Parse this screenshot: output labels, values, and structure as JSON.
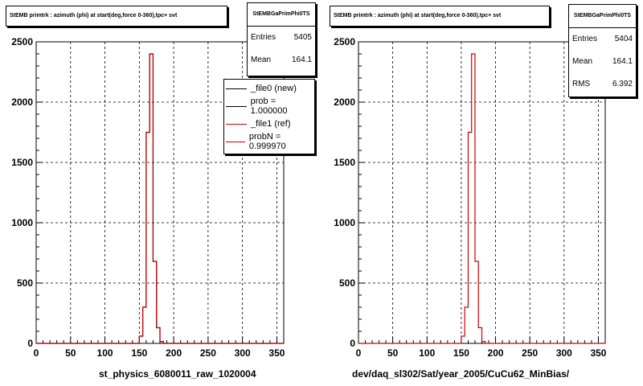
{
  "colors": {
    "new": "#000000",
    "ref": "#cc0000",
    "grid": "#000000"
  },
  "panels": [
    {
      "title": "StEMB primtrk : azimuth (phi) at start(deg,force 0-360),tpc+ svt",
      "xtitle": "st_physics_6080011_raw_1020004",
      "stats": {
        "name": "StEMBGaPrimPhi0TS",
        "entries_label": "Entries",
        "entries": "5405",
        "mean_label": "Mean",
        "mean": "164.1"
      },
      "legend": [
        {
          "label": "_file0 (new)",
          "color": "#000000"
        },
        {
          "label": "prob = 1.000000",
          "color": "#000000"
        },
        {
          "label": "_file1 (ref)",
          "color": "#cc0000"
        },
        {
          "label": "probN = 0.999970",
          "color": "#cc0000"
        }
      ]
    },
    {
      "title": "StEMB primtrk : azimuth (phi) at start(deg,force 0-360),tpc+ svt",
      "xtitle": "dev/daq_sl302/Sat/year_2005/CuCu62_MinBias/",
      "stats": {
        "name": "StEMBGaPrimPhi0TS",
        "entries_label": "Entries",
        "entries": "5404",
        "mean_label": "Mean",
        "mean": "164.1",
        "rms_label": "RMS",
        "rms": "6.392"
      }
    }
  ],
  "chart_data": [
    {
      "type": "histogram",
      "title": "StEMB primtrk : azimuth (phi) at start(deg,force 0-360),tpc+ svt",
      "xlabel": "st_physics_6080011_raw_1020004",
      "ylabel": "",
      "xlim": [
        0,
        360
      ],
      "ylim": [
        0,
        2500
      ],
      "xticks": [
        0,
        50,
        100,
        150,
        200,
        250,
        300,
        350
      ],
      "yticks": [
        0,
        500,
        1000,
        1500,
        2000,
        2500
      ],
      "grid": true,
      "legend_position": "top-right",
      "bin_edges": [
        150,
        155,
        160,
        165,
        170,
        175,
        180,
        185
      ],
      "series": [
        {
          "name": "_file0 (new)",
          "values": [
            60,
            300,
            1750,
            2400,
            680,
            130,
            15
          ]
        },
        {
          "name": "_file1 (ref)",
          "values": [
            60,
            300,
            1750,
            2400,
            680,
            130,
            15
          ]
        }
      ]
    },
    {
      "type": "histogram",
      "title": "StEMB primtrk : azimuth (phi) at start(deg,force 0-360),tpc+ svt",
      "xlabel": "dev/daq_sl302/Sat/year_2005/CuCu62_MinBias/",
      "ylabel": "",
      "xlim": [
        0,
        360
      ],
      "ylim": [
        0,
        2500
      ],
      "xticks": [
        0,
        50,
        100,
        150,
        200,
        250,
        300,
        350
      ],
      "yticks": [
        0,
        500,
        1000,
        1500,
        2000,
        2500
      ],
      "grid": true,
      "bin_edges": [
        150,
        155,
        160,
        165,
        170,
        175,
        180,
        185
      ],
      "series": [
        {
          "values": [
            60,
            300,
            1750,
            2400,
            680,
            130,
            15
          ]
        }
      ]
    }
  ]
}
